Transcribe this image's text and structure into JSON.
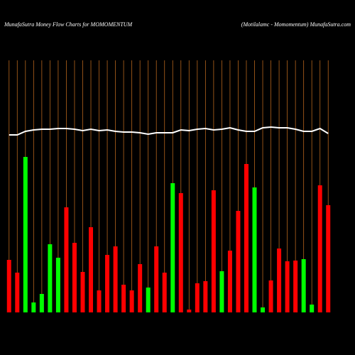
{
  "chart_data": {
    "type": "bar",
    "title": "MunafaSutra  Money Flow  Charts for MOMOMENTUM",
    "subtitle": "(Motilalamc -  Momomentum) MunafaSutra.com",
    "categories": [
      null,
      null,
      null,
      null,
      null,
      null,
      null,
      null,
      null,
      null,
      null,
      null,
      null,
      null,
      null,
      null,
      null,
      null,
      null,
      null,
      null,
      null,
      null,
      null,
      null,
      null,
      null,
      null,
      null,
      null,
      null,
      null,
      null,
      null,
      null,
      null,
      null,
      null,
      null,
      null
    ],
    "values": [
      74,
      56,
      219,
      14,
      26,
      96,
      77,
      148,
      98,
      57,
      120,
      31,
      81,
      93,
      39,
      31,
      68,
      35,
      93,
      56,
      182,
      168,
      4,
      41,
      44,
      172,
      58,
      87,
      143,
      209,
      176,
      7,
      45,
      90,
      72,
      73,
      75,
      11,
      179,
      151
    ],
    "colors": [
      "#ff0000",
      "#ff0000",
      "#00ff00",
      "#00ff00",
      "#00ff00",
      "#00ff00",
      "#00ff00",
      "#ff0000",
      "#ff0000",
      "#ff0000",
      "#ff0000",
      "#ff0000",
      "#ff0000",
      "#ff0000",
      "#ff0000",
      "#ff0000",
      "#ff0000",
      "#00ff00",
      "#ff0000",
      "#ff0000",
      "#00ff00",
      "#ff0000",
      "#ff0000",
      "#ff0000",
      "#ff0000",
      "#ff0000",
      "#00ff00",
      "#ff0000",
      "#ff0000",
      "#ff0000",
      "#00ff00",
      "#00ff00",
      "#ff0000",
      "#ff0000",
      "#ff0000",
      "#ff0000",
      "#00ff00",
      "#00ff00",
      "#ff0000",
      "#ff0000"
    ],
    "line": {
      "color": "#ffffff",
      "values": [
        250,
        250,
        255,
        257,
        258,
        258,
        259,
        259,
        258,
        256,
        258,
        256,
        257,
        255,
        254,
        254,
        253,
        251,
        253,
        253,
        253,
        257,
        256,
        258,
        259,
        257,
        258,
        260,
        257,
        255,
        255,
        260,
        261,
        260,
        260,
        258,
        255,
        255,
        259,
        252
      ]
    },
    "ylim": [
      0,
      355
    ]
  }
}
